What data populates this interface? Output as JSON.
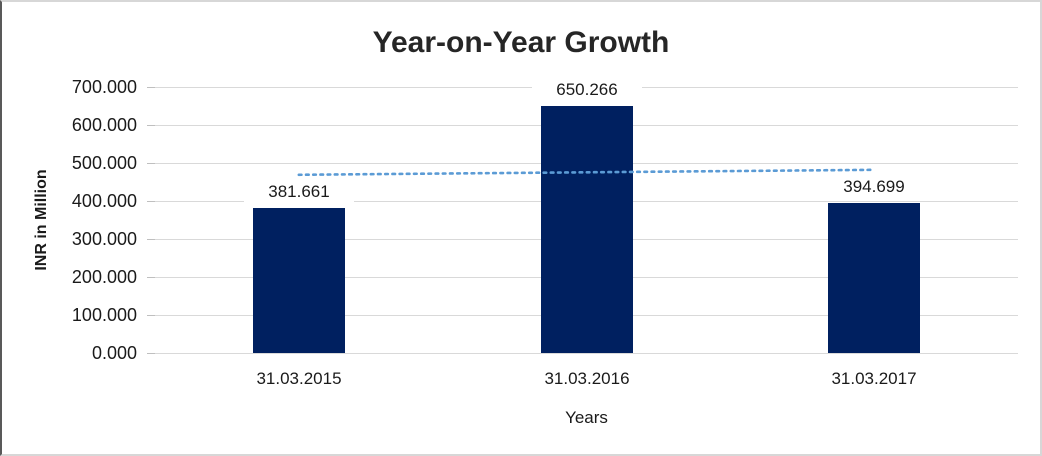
{
  "chart_data": {
    "type": "bar",
    "title": "Year-on-Year Growth",
    "categories": [
      "31.03.2015",
      "31.03.2016",
      "31.03.2017"
    ],
    "values": [
      381.661,
      650.266,
      394.699
    ],
    "data_labels": [
      "381.661",
      "650.266",
      "394.699"
    ],
    "xlabel": "Years",
    "ylabel": "INR in Million",
    "ylim": [
      0,
      700
    ],
    "yticks": [
      0,
      100,
      200,
      300,
      400,
      500,
      600,
      700
    ],
    "ytick_labels": [
      "0.000",
      "100.000",
      "200.000",
      "300.000",
      "400.000",
      "500.000",
      "600.000",
      "700.000"
    ],
    "grid": true,
    "legend": "none",
    "bar_color": "#002060",
    "gridline_color": "#d9d9d9",
    "text_color": "#1a1a1a",
    "trendline": {
      "type": "linear",
      "style": "dotted",
      "color": "#5b9bd5"
    }
  }
}
